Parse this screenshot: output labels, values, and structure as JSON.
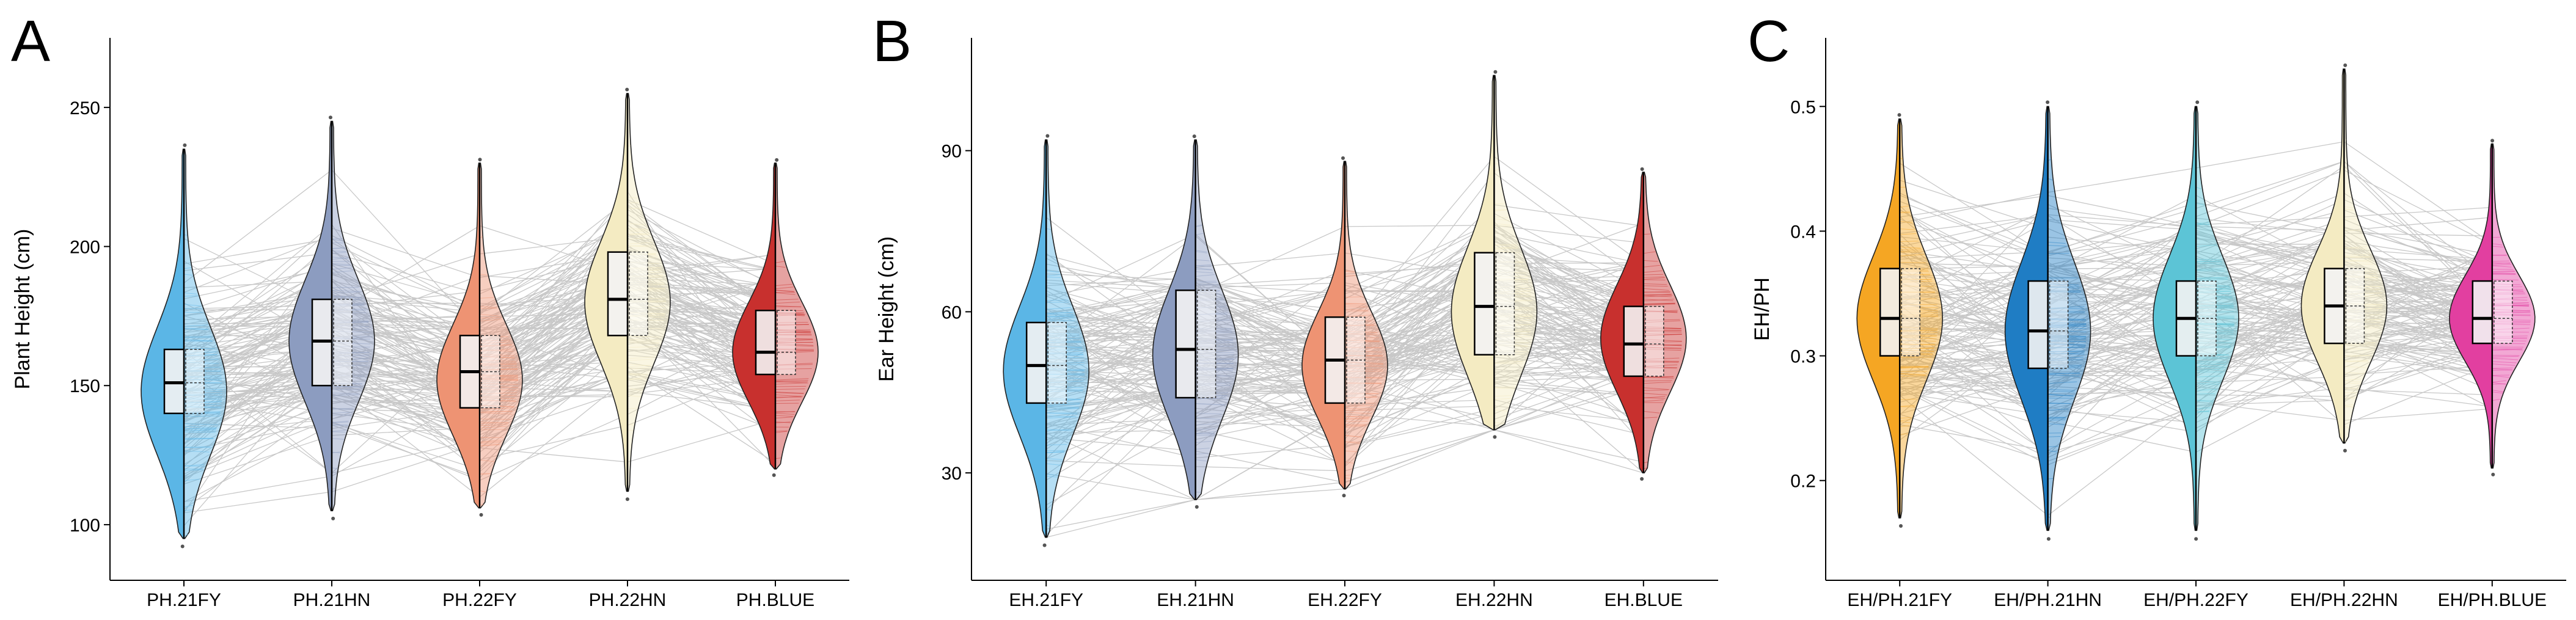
{
  "chart_data": [
    {
      "type": "violin",
      "panel_label": "A",
      "ylabel": "Plant Height (cm)",
      "xlabel": "",
      "yticks": [
        100,
        150,
        200,
        250
      ],
      "ylim": [
        80,
        275
      ],
      "categories": [
        "PH.21FY",
        "PH.21HN",
        "PH.22FY",
        "PH.22HN",
        "PH.BLUE"
      ],
      "colors": [
        "#5BB6E6",
        "#8C9CC0",
        "#EE9373",
        "#F4EBC2",
        "#C8302E"
      ],
      "series": [
        {
          "min": 95,
          "q1": 140,
          "median": 151,
          "q3": 163,
          "max": 235,
          "width_center": 148,
          "spread": 23
        },
        {
          "min": 105,
          "q1": 150,
          "median": 166,
          "q3": 181,
          "max": 245,
          "width_center": 166,
          "spread": 22
        },
        {
          "min": 106,
          "q1": 142,
          "median": 155,
          "q3": 168,
          "max": 230,
          "width_center": 152,
          "spread": 20
        },
        {
          "min": 112,
          "q1": 168,
          "median": 181,
          "q3": 198,
          "max": 255,
          "width_center": 180,
          "spread": 22
        },
        {
          "min": 120,
          "q1": 154,
          "median": 162,
          "q3": 177,
          "max": 230,
          "width_center": 162,
          "spread": 18
        }
      ],
      "grid": false
    },
    {
      "type": "violin",
      "panel_label": "B",
      "ylabel": "Ear Height (cm)",
      "xlabel": "",
      "yticks": [
        30,
        60,
        90
      ],
      "ylim": [
        10,
        111
      ],
      "categories": [
        "EH.21FY",
        "EH.21HN",
        "EH.22FY",
        "EH.22HN",
        "EH.BLUE"
      ],
      "colors": [
        "#5BB6E6",
        "#8C9CC0",
        "#EE9373",
        "#F4EBC2",
        "#C8302E"
      ],
      "series": [
        {
          "min": 18,
          "q1": 43,
          "median": 50,
          "q3": 58,
          "max": 92,
          "width_center": 49,
          "spread": 12
        },
        {
          "min": 25,
          "q1": 44,
          "median": 53,
          "q3": 64,
          "max": 92,
          "width_center": 52,
          "spread": 12
        },
        {
          "min": 27,
          "q1": 43,
          "median": 51,
          "q3": 59,
          "max": 88,
          "width_center": 50,
          "spread": 10
        },
        {
          "min": 38,
          "q1": 52,
          "median": 61,
          "q3": 71,
          "max": 104,
          "width_center": 60,
          "spread": 12
        },
        {
          "min": 30,
          "q1": 48,
          "median": 54,
          "q3": 61,
          "max": 86,
          "width_center": 55,
          "spread": 10
        }
      ],
      "grid": false
    },
    {
      "type": "violin",
      "panel_label": "C",
      "ylabel": "EH/PH",
      "xlabel": "",
      "yticks": [
        0.2,
        0.3,
        0.4,
        0.5
      ],
      "ylim": [
        0.12,
        0.555
      ],
      "categories": [
        "EH/PH.21FY",
        "EH/PH.21HN",
        "EH/PH.22FY",
        "EH/PH.22HN",
        "EH/PH.BLUE"
      ],
      "colors": [
        "#F5A623",
        "#1F7DC4",
        "#5CC4D6",
        "#F4EBC2",
        "#E23FA0"
      ],
      "series": [
        {
          "min": 0.17,
          "q1": 0.3,
          "median": 0.33,
          "q3": 0.37,
          "max": 0.49,
          "width_center": 0.33,
          "spread": 0.05
        },
        {
          "min": 0.16,
          "q1": 0.29,
          "median": 0.32,
          "q3": 0.36,
          "max": 0.5,
          "width_center": 0.32,
          "spread": 0.055
        },
        {
          "min": 0.16,
          "q1": 0.3,
          "median": 0.33,
          "q3": 0.36,
          "max": 0.5,
          "width_center": 0.33,
          "spread": 0.05
        },
        {
          "min": 0.23,
          "q1": 0.31,
          "median": 0.34,
          "q3": 0.37,
          "max": 0.53,
          "width_center": 0.34,
          "spread": 0.045
        },
        {
          "min": 0.21,
          "q1": 0.31,
          "median": 0.33,
          "q3": 0.36,
          "max": 0.47,
          "width_center": 0.33,
          "spread": 0.035
        }
      ],
      "grid": false
    }
  ]
}
